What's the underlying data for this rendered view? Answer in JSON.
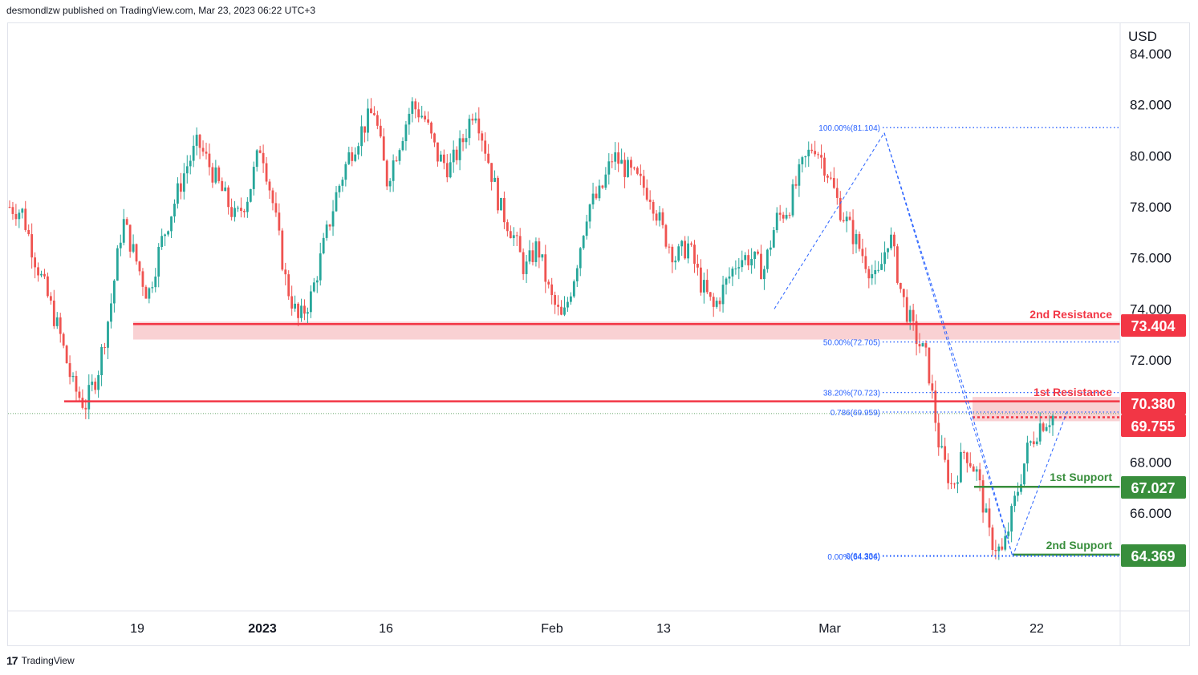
{
  "header": {
    "text": "desmondlzw published on TradingView.com, Mar 23, 2023 06:22 UTC+3"
  },
  "footer": {
    "logo": "17",
    "brand": "TradingView"
  },
  "colors": {
    "up": "#26a69a",
    "down": "#ef5350",
    "resistance": "#f23645",
    "support": "#388e3c",
    "fib": "#2962ff",
    "zone": "#f7c5c8"
  },
  "chart_data": {
    "type": "candlestick",
    "currency": "USD",
    "y_ticks": [
      "84.000",
      "82.000",
      "80.000",
      "78.000",
      "76.000",
      "74.000",
      "72.000",
      "68.000",
      "66.000"
    ],
    "y_tick_values": [
      84,
      82,
      80,
      78,
      76,
      74,
      72,
      68,
      66
    ],
    "x_ticks": [
      "19",
      "2023",
      "16",
      "Feb",
      "13",
      "Mar",
      "13",
      "22"
    ],
    "ylim": [
      62.5,
      85
    ],
    "close_path": [
      78.0,
      77.8,
      76.0,
      74.5,
      73.0,
      71.0,
      70.2,
      71.5,
      74.0,
      77.5,
      76.0,
      74.5,
      76.5,
      78.0,
      79.5,
      80.5,
      79.5,
      78.5,
      77.5,
      78.5,
      80.5,
      78.0,
      75.0,
      73.5,
      74.5,
      76.5,
      78.5,
      80.0,
      81.0,
      81.8,
      79.0,
      80.5,
      82.0,
      81.5,
      80.0,
      79.5,
      80.5,
      82.0,
      80.0,
      78.0,
      77.0,
      75.5,
      76.5,
      74.5,
      73.5,
      75.5,
      78.0,
      78.5,
      80.0,
      79.5,
      79.0,
      78.5,
      77.0,
      76.0,
      76.5,
      75.0,
      74.0,
      75.0,
      76.0,
      76.0,
      75.5,
      77.5,
      78.0,
      79.5,
      80.5,
      79.5,
      78.0,
      77.0,
      76.0,
      75.0,
      77.0,
      74.5,
      73.0,
      72.0,
      68.5,
      67.0,
      68.5,
      67.5,
      65.0,
      64.4,
      66.5,
      68.5,
      69.5,
      69.8
    ],
    "levels": [
      {
        "label": "2nd Resistance",
        "value": "73.404",
        "kind": "resistance"
      },
      {
        "label": "1st Resistance",
        "value": "70.380",
        "kind": "resistance"
      },
      {
        "label": "",
        "value": "69.755",
        "kind": "resistance"
      },
      {
        "label": "1st Support",
        "value": "67.027",
        "kind": "support"
      },
      {
        "label": "2nd Support",
        "value": "64.369",
        "kind": "support"
      }
    ],
    "fib_labels": [
      {
        "text": "100.00%(81.104)",
        "price": 81.104
      },
      {
        "text": "50.00%(72.705)",
        "price": 72.705
      },
      {
        "text": "38.20%(70.723)",
        "price": 70.723
      },
      {
        "text": "0.786(69.959)",
        "price": 69.959
      },
      {
        "text": "0(64.334)",
        "price": 64.334
      },
      {
        "text": "0.00%(64.306)",
        "price": 64.306
      }
    ]
  }
}
